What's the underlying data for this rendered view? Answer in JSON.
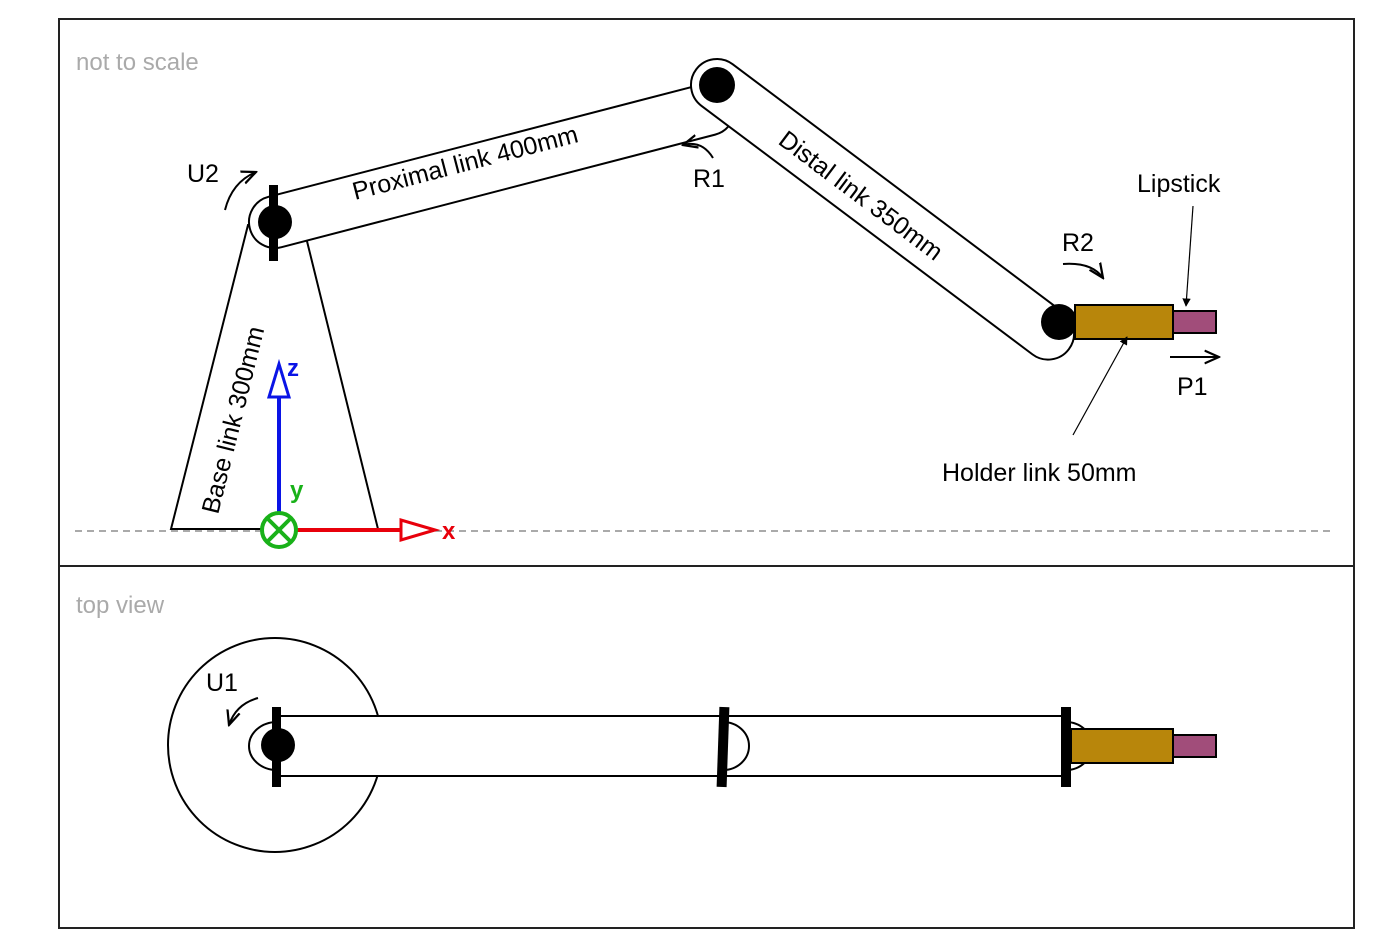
{
  "side_view": {
    "caption": "not to scale",
    "links": {
      "proximal": "Proximal link 400mm",
      "distal": "Distal link 350mm",
      "base": "Base link 300mm",
      "holder": "Holder link 50mm"
    },
    "joints": {
      "u2": "U2",
      "r1": "R1",
      "r2": "R2",
      "p1": "P1"
    },
    "tool": "Lipstick",
    "axes": {
      "x": "x",
      "y": "y",
      "z": "z"
    }
  },
  "top_view": {
    "caption": "top view",
    "joints": {
      "u1": "U1"
    }
  },
  "colors": {
    "holder": "#b8860b",
    "lipstick": "#a14d7a",
    "axis_x": "#e8000b",
    "axis_y": "#19b119",
    "axis_z": "#0a14e6",
    "caption": "#aaaaaa",
    "frame": "#222222"
  }
}
